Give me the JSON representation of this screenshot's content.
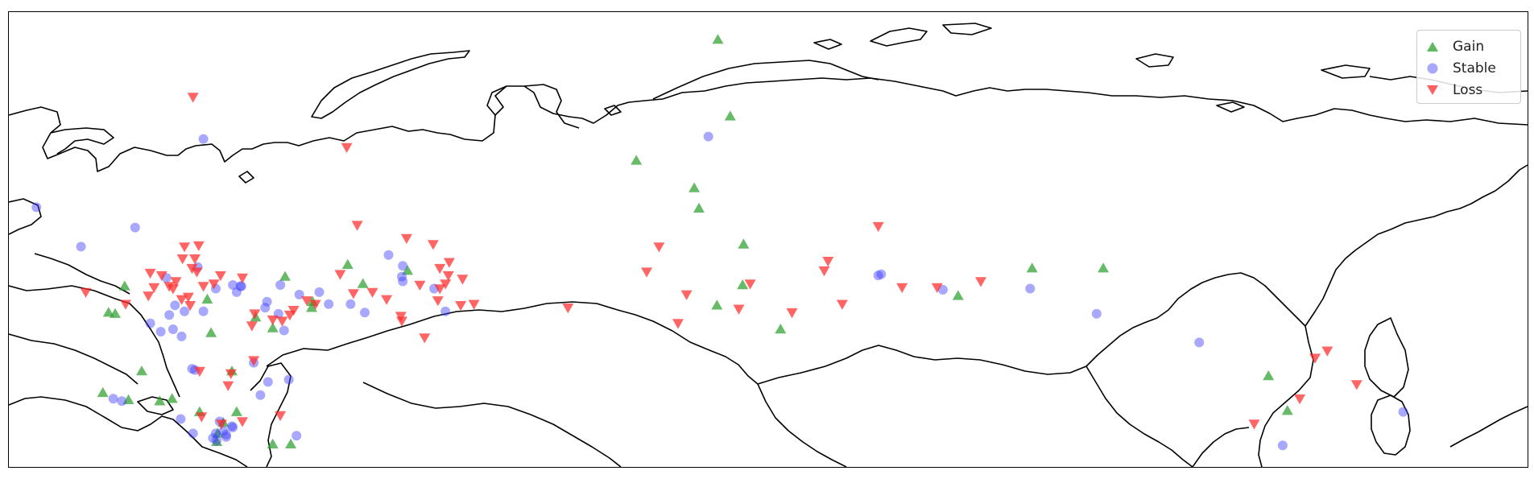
{
  "map": {
    "type": "scatter-map",
    "region": "Northern Eurasia",
    "colors": {
      "gain": "#2ca02c",
      "stable": "#3d3dff",
      "loss": "#ff2a2a",
      "coast": "#000000"
    },
    "legend": {
      "placement": "top-right",
      "entries": [
        {
          "key": "gain",
          "label": "Gain",
          "marker": "triangle-up"
        },
        {
          "key": "stable",
          "label": "Stable",
          "marker": "circle"
        },
        {
          "key": "loss",
          "label": "Loss",
          "marker": "triangle-down"
        }
      ]
    },
    "lon_range": [
      20,
      180
    ],
    "lat_range": [
      40,
      78
    ]
  },
  "chart_data": {
    "type": "scatter",
    "xlabel": "",
    "ylabel": "",
    "xlim": [
      20,
      180
    ],
    "ylim": [
      40,
      78
    ],
    "grid": false,
    "legend_placement": "top-right",
    "series": [
      {
        "name": "Gain",
        "marker": "triangle-up",
        "points": [
          [
            41.3,
            51.2
          ],
          [
            43.5,
            48.0
          ],
          [
            40.9,
            54.0
          ],
          [
            32.2,
            55.1
          ],
          [
            31.2,
            52.8
          ],
          [
            30.5,
            52.9
          ],
          [
            34.0,
            48.0
          ],
          [
            46.0,
            52.5
          ],
          [
            47.8,
            51.6
          ],
          [
            49.1,
            55.9
          ],
          [
            52.0,
            53.8
          ],
          [
            57.3,
            55.3
          ],
          [
            62.0,
            56.4
          ],
          [
            55.7,
            56.9
          ],
          [
            51.9,
            53.3
          ],
          [
            35.9,
            45.5
          ],
          [
            32.6,
            45.6
          ],
          [
            29.9,
            46.2
          ],
          [
            44.0,
            44.6
          ],
          [
            37.2,
            45.7
          ],
          [
            40.1,
            44.6
          ],
          [
            42.6,
            43.7
          ],
          [
            42.0,
            42.8
          ],
          [
            41.9,
            42.1
          ],
          [
            47.8,
            41.9
          ],
          [
            49.7,
            41.9
          ],
          [
            86.1,
            65.6
          ],
          [
            94.7,
            75.7
          ],
          [
            96.0,
            69.3
          ],
          [
            92.7,
            61.6
          ],
          [
            97.4,
            58.6
          ],
          [
            92.2,
            63.3
          ],
          [
            101.3,
            51.5
          ],
          [
            94.6,
            53.5
          ],
          [
            97.3,
            55.2
          ],
          [
            120.0,
            54.3
          ],
          [
            127.8,
            56.6
          ],
          [
            135.3,
            56.6
          ],
          [
            152.7,
            47.6
          ],
          [
            154.7,
            44.7
          ]
        ]
      },
      {
        "name": "Stable",
        "marker": "circle",
        "points": [
          [
            40.5,
            67.4
          ],
          [
            22.9,
            61.7
          ],
          [
            27.6,
            58.4
          ],
          [
            33.3,
            60.0
          ],
          [
            40.5,
            53.0
          ],
          [
            36.6,
            55.8
          ],
          [
            39.9,
            56.7
          ],
          [
            44.4,
            55.1
          ],
          [
            44.0,
            54.6
          ],
          [
            47.0,
            53.3
          ],
          [
            48.6,
            55.2
          ],
          [
            50.6,
            54.4
          ],
          [
            48.4,
            52.8
          ],
          [
            47.2,
            53.8
          ],
          [
            43.6,
            55.2
          ],
          [
            44.5,
            55.1
          ],
          [
            41.8,
            54.9
          ],
          [
            37.5,
            53.5
          ],
          [
            38.5,
            53.0
          ],
          [
            36.9,
            52.7
          ],
          [
            34.9,
            52.0
          ],
          [
            38.2,
            50.9
          ],
          [
            37.3,
            51.5
          ],
          [
            36.0,
            51.3
          ],
          [
            52.7,
            54.6
          ],
          [
            53.7,
            53.6
          ],
          [
            56.0,
            53.6
          ],
          [
            57.5,
            52.9
          ],
          [
            61.5,
            55.5
          ],
          [
            61.5,
            56.8
          ],
          [
            61.4,
            55.9
          ],
          [
            64.8,
            54.9
          ],
          [
            66.0,
            53.0
          ],
          [
            60.0,
            57.7
          ],
          [
            49.0,
            51.4
          ],
          [
            49.5,
            47.3
          ],
          [
            46.5,
            46.0
          ],
          [
            47.3,
            47.1
          ],
          [
            45.8,
            48.7
          ],
          [
            39.3,
            48.2
          ],
          [
            39.6,
            48.1
          ],
          [
            43.5,
            43.4
          ],
          [
            42.2,
            43.8
          ],
          [
            41.8,
            42.8
          ],
          [
            41.9,
            42.2
          ],
          [
            41.5,
            42.4
          ],
          [
            42.9,
            42.7
          ],
          [
            43.6,
            43.3
          ],
          [
            42.6,
            43.0
          ],
          [
            42.9,
            42.5
          ],
          [
            38.1,
            44.0
          ],
          [
            39.4,
            42.8
          ],
          [
            31.0,
            45.7
          ],
          [
            31.9,
            45.5
          ],
          [
            50.3,
            42.6
          ],
          [
            93.7,
            67.6
          ],
          [
            111.6,
            56.0
          ],
          [
            111.9,
            56.1
          ],
          [
            118.4,
            54.8
          ],
          [
            127.6,
            54.9
          ],
          [
            134.6,
            52.8
          ],
          [
            145.4,
            50.4
          ],
          [
            154.2,
            41.8
          ],
          [
            166.9,
            44.6
          ]
        ]
      },
      {
        "name": "Loss",
        "marker": "triangle-down",
        "points": [
          [
            39.4,
            70.9
          ],
          [
            55.6,
            66.7
          ],
          [
            28.1,
            54.6
          ],
          [
            32.3,
            53.6
          ],
          [
            34.7,
            54.3
          ],
          [
            34.9,
            56.2
          ],
          [
            36.1,
            56.0
          ],
          [
            37.6,
            55.5
          ],
          [
            36.9,
            55.1
          ],
          [
            37.3,
            54.9
          ],
          [
            35.3,
            55.0
          ],
          [
            38.2,
            54.0
          ],
          [
            38.9,
            54.2
          ],
          [
            39.1,
            53.5
          ],
          [
            40.5,
            55.1
          ],
          [
            41.6,
            55.3
          ],
          [
            42.3,
            56.0
          ],
          [
            39.3,
            56.6
          ],
          [
            39.8,
            56.3
          ],
          [
            38.3,
            57.4
          ],
          [
            39.6,
            57.4
          ],
          [
            38.5,
            58.4
          ],
          [
            40.0,
            58.5
          ],
          [
            44.6,
            55.8
          ],
          [
            45.9,
            52.8
          ],
          [
            45.6,
            51.8
          ],
          [
            47.8,
            52.3
          ],
          [
            48.8,
            52.2
          ],
          [
            49.6,
            52.7
          ],
          [
            50.0,
            53.1
          ],
          [
            51.4,
            53.9
          ],
          [
            52.3,
            53.6
          ],
          [
            54.9,
            56.1
          ],
          [
            56.3,
            54.5
          ],
          [
            58.3,
            54.6
          ],
          [
            59.8,
            54.0
          ],
          [
            61.3,
            52.6
          ],
          [
            61.4,
            52.2
          ],
          [
            63.8,
            50.8
          ],
          [
            65.2,
            53.9
          ],
          [
            65.4,
            54.9
          ],
          [
            66.0,
            55.3
          ],
          [
            65.4,
            56.6
          ],
          [
            66.4,
            57.1
          ],
          [
            66.3,
            56.0
          ],
          [
            67.8,
            55.7
          ],
          [
            67.6,
            53.5
          ],
          [
            69.0,
            53.6
          ],
          [
            64.7,
            58.6
          ],
          [
            63.3,
            55.2
          ],
          [
            61.9,
            59.1
          ],
          [
            56.7,
            60.2
          ],
          [
            40.1,
            48.0
          ],
          [
            43.4,
            47.8
          ],
          [
            45.8,
            48.9
          ],
          [
            40.3,
            44.2
          ],
          [
            44.6,
            43.8
          ],
          [
            42.4,
            43.6
          ],
          [
            48.6,
            44.3
          ],
          [
            43.1,
            46.8
          ],
          [
            87.2,
            56.3
          ],
          [
            90.5,
            52.0
          ],
          [
            91.4,
            54.4
          ],
          [
            96.9,
            53.2
          ],
          [
            98.1,
            55.3
          ],
          [
            102.5,
            52.9
          ],
          [
            107.8,
            53.6
          ],
          [
            105.9,
            56.4
          ],
          [
            106.3,
            57.2
          ],
          [
            78.9,
            53.3
          ],
          [
            88.5,
            58.4
          ],
          [
            111.6,
            60.1
          ],
          [
            114.1,
            55.0
          ],
          [
            117.8,
            55.0
          ],
          [
            122.4,
            55.5
          ],
          [
            158.9,
            49.7
          ],
          [
            162.0,
            46.9
          ],
          [
            157.6,
            49.1
          ],
          [
            151.2,
            43.6
          ],
          [
            156.0,
            45.7
          ]
        ]
      }
    ]
  }
}
